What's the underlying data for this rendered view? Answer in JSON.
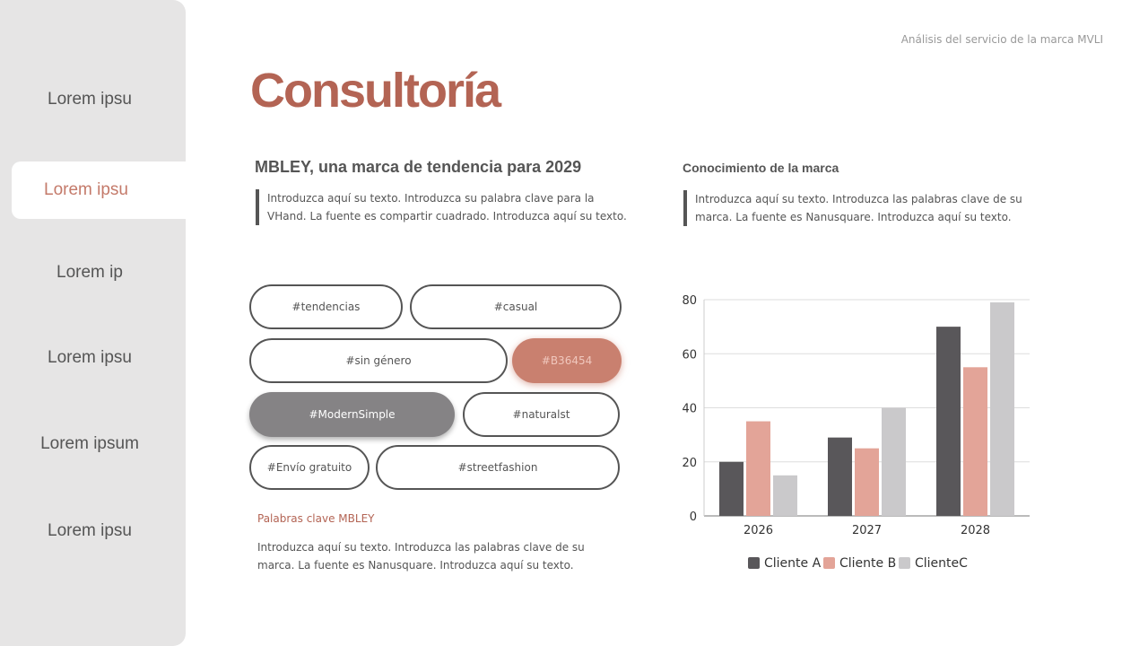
{
  "sidebar": {
    "items": [
      {
        "label": "Lorem ipsu"
      },
      {
        "label": "Lorem ipsu"
      },
      {
        "label": "Lorem ip"
      },
      {
        "label": "Lorem ipsu"
      },
      {
        "label": "Lorem ipsum"
      },
      {
        "label": "Lorem ipsu"
      }
    ],
    "active_index": 1
  },
  "header": {
    "subtitle": "Análisis del servicio de la marca MVLI",
    "title": "Consultoría"
  },
  "left": {
    "heading": "MBLEY, una marca de tendencia para 2029",
    "text_line1": "Introduzca aquí su texto. Introduzca su palabra clave para la",
    "text_line2": "VHand. La fuente es compartir cuadrado. Introduzca aquí su texto."
  },
  "right": {
    "heading": "Conocimiento de la marca",
    "text_line1": "Introduzca aquí su texto. Introduzca las palabras clave de su",
    "text_line2": "marca. La fuente es Nanusquare. Introduzca aquí su texto."
  },
  "tags": [
    "#tendencias",
    "#casual",
    "#sin género",
    "#B36454",
    "#ModernSimple",
    "#naturalst",
    "#Envío gratuito",
    "#streetfashion"
  ],
  "keywords": {
    "label": "Palabras clave MBLEY",
    "text_line1": "Introduzca aquí su texto. Introduzca las palabras clave de su",
    "text_line2": "marca. La fuente es Nanusquare. Introduzca aquí su texto."
  },
  "colors": {
    "accent": "#B36454",
    "clienteA": "#59575a",
    "clienteB": "#e3a498",
    "clienteC": "#cac9cb"
  },
  "chart_data": {
    "type": "bar",
    "categories": [
      "2026",
      "2027",
      "2028"
    ],
    "ylim": [
      0,
      80
    ],
    "yticks": [
      0,
      20,
      40,
      60,
      80
    ],
    "grid": true,
    "legend": "bottom",
    "series": [
      {
        "name": "Cliente A",
        "values": [
          20,
          29,
          70
        ]
      },
      {
        "name": "Cliente B",
        "values": [
          35,
          25,
          55
        ]
      },
      {
        "name": "ClienteC",
        "values": [
          15,
          40,
          79
        ]
      }
    ]
  }
}
